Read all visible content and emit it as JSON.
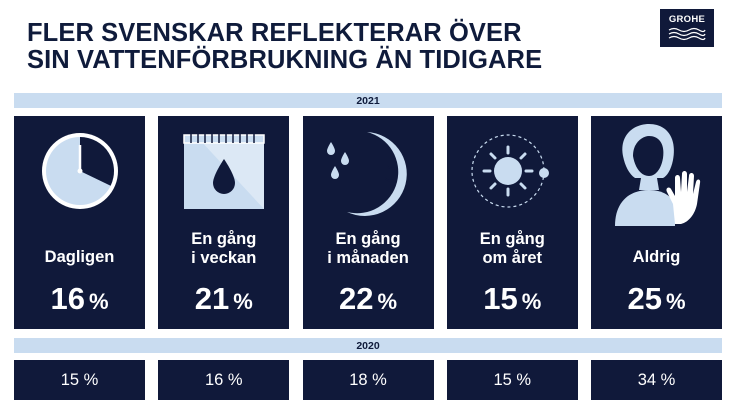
{
  "title": {
    "line1": "FLER SVENSKAR REFLEKTERAR ÖVER",
    "line2": "SIN VATTENFÖRBRUKNING ÄN TIDIGARE"
  },
  "logo": {
    "text": "GROHE"
  },
  "years": {
    "current": "2021",
    "previous": "2020"
  },
  "colors": {
    "navy": "#10193a",
    "light_blue": "#c9dcf0",
    "white": "#ffffff"
  },
  "chart_data": {
    "type": "table",
    "categories": [
      "Dagligen",
      "En gång i veckan",
      "En gång i månaden",
      "En gång om året",
      "Aldrig"
    ],
    "series": [
      {
        "name": "2021",
        "values": [
          16,
          21,
          22,
          15,
          25
        ]
      },
      {
        "name": "2020",
        "values": [
          15,
          16,
          18,
          15,
          34
        ]
      }
    ],
    "unit": "%"
  },
  "cards": [
    {
      "icon": "clock-icon",
      "label_lines": [
        "Dagligen"
      ],
      "value": "16",
      "unit": "%",
      "prev": "15 %"
    },
    {
      "icon": "calendar-drop-icon",
      "label_lines": [
        "En gång",
        "i veckan"
      ],
      "value": "21",
      "unit": "%",
      "prev": "16 %"
    },
    {
      "icon": "moon-drops-icon",
      "label_lines": [
        "En gång",
        "i månaden"
      ],
      "value": "22",
      "unit": "%",
      "prev": "18 %"
    },
    {
      "icon": "sun-orbit-icon",
      "label_lines": [
        "En gång",
        "om året"
      ],
      "value": "15",
      "unit": "%",
      "prev": "15 %"
    },
    {
      "icon": "person-stop-hand-icon",
      "label_lines": [
        "Aldrig"
      ],
      "value": "25",
      "unit": "%",
      "prev": "34 %"
    }
  ]
}
